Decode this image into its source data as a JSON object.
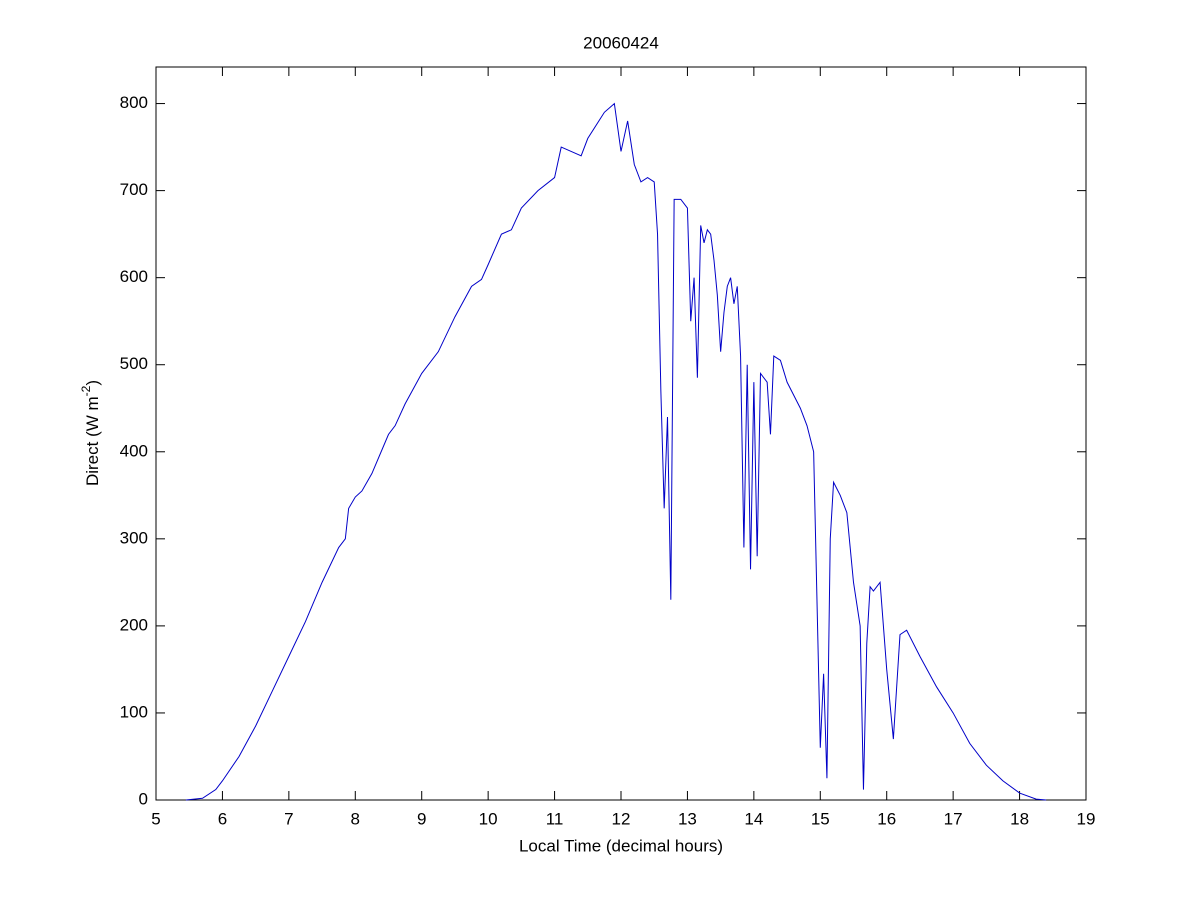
{
  "chart_data": {
    "type": "line",
    "title": "20060424",
    "xlabel": "Local Time (decimal hours)",
    "ylabel": {
      "text": "Direct (W m",
      "superscript": "-2",
      "close": ")"
    },
    "xlim": [
      5,
      19
    ],
    "xticks": [
      5,
      6,
      7,
      8,
      9,
      10,
      11,
      12,
      13,
      14,
      15,
      16,
      17,
      18,
      19
    ],
    "ylim": [
      0,
      842
    ],
    "yticks": [
      0,
      100,
      200,
      300,
      400,
      500,
      600,
      700,
      800
    ],
    "series": [
      {
        "color": "#0000c8",
        "x": [
          5.45,
          5.7,
          5.9,
          6.0,
          6.25,
          6.5,
          6.75,
          7.0,
          7.25,
          7.5,
          7.75,
          7.85,
          7.9,
          8.0,
          8.1,
          8.25,
          8.5,
          8.6,
          8.75,
          9.0,
          9.25,
          9.5,
          9.75,
          9.9,
          10.0,
          10.2,
          10.35,
          10.5,
          10.75,
          11.0,
          11.1,
          11.25,
          11.4,
          11.5,
          11.75,
          11.9,
          12.0,
          12.1,
          12.2,
          12.3,
          12.4,
          12.5,
          12.55,
          12.6,
          12.65,
          12.7,
          12.75,
          12.8,
          12.9,
          13.0,
          13.05,
          13.1,
          13.15,
          13.2,
          13.25,
          13.3,
          13.35,
          13.4,
          13.45,
          13.5,
          13.55,
          13.6,
          13.65,
          13.7,
          13.75,
          13.8,
          13.85,
          13.9,
          13.95,
          14.0,
          14.05,
          14.1,
          14.2,
          14.25,
          14.3,
          14.4,
          14.5,
          14.7,
          14.8,
          14.9,
          15.0,
          15.05,
          15.1,
          15.15,
          15.2,
          15.3,
          15.4,
          15.5,
          15.6,
          15.65,
          15.7,
          15.75,
          15.8,
          15.9,
          16.0,
          16.1,
          16.2,
          16.3,
          16.5,
          16.75,
          17.0,
          17.25,
          17.5,
          17.75,
          18.0,
          18.25,
          18.4
        ],
        "values": [
          0,
          2,
          12,
          22,
          50,
          85,
          125,
          165,
          205,
          250,
          290,
          300,
          335,
          348,
          355,
          375,
          420,
          430,
          455,
          490,
          515,
          555,
          590,
          598,
          615,
          650,
          655,
          680,
          700,
          715,
          750,
          745,
          740,
          760,
          790,
          800,
          745,
          780,
          730,
          710,
          715,
          710,
          650,
          470,
          335,
          440,
          230,
          690,
          690,
          680,
          550,
          600,
          485,
          660,
          640,
          655,
          650,
          620,
          580,
          515,
          560,
          590,
          600,
          570,
          590,
          510,
          290,
          500,
          265,
          480,
          280,
          490,
          480,
          420,
          510,
          505,
          480,
          450,
          430,
          400,
          60,
          145,
          25,
          300,
          365,
          350,
          330,
          250,
          200,
          12,
          180,
          245,
          240,
          250,
          150,
          70,
          190,
          195,
          165,
          130,
          100,
          65,
          40,
          22,
          8,
          1,
          0
        ]
      }
    ]
  }
}
